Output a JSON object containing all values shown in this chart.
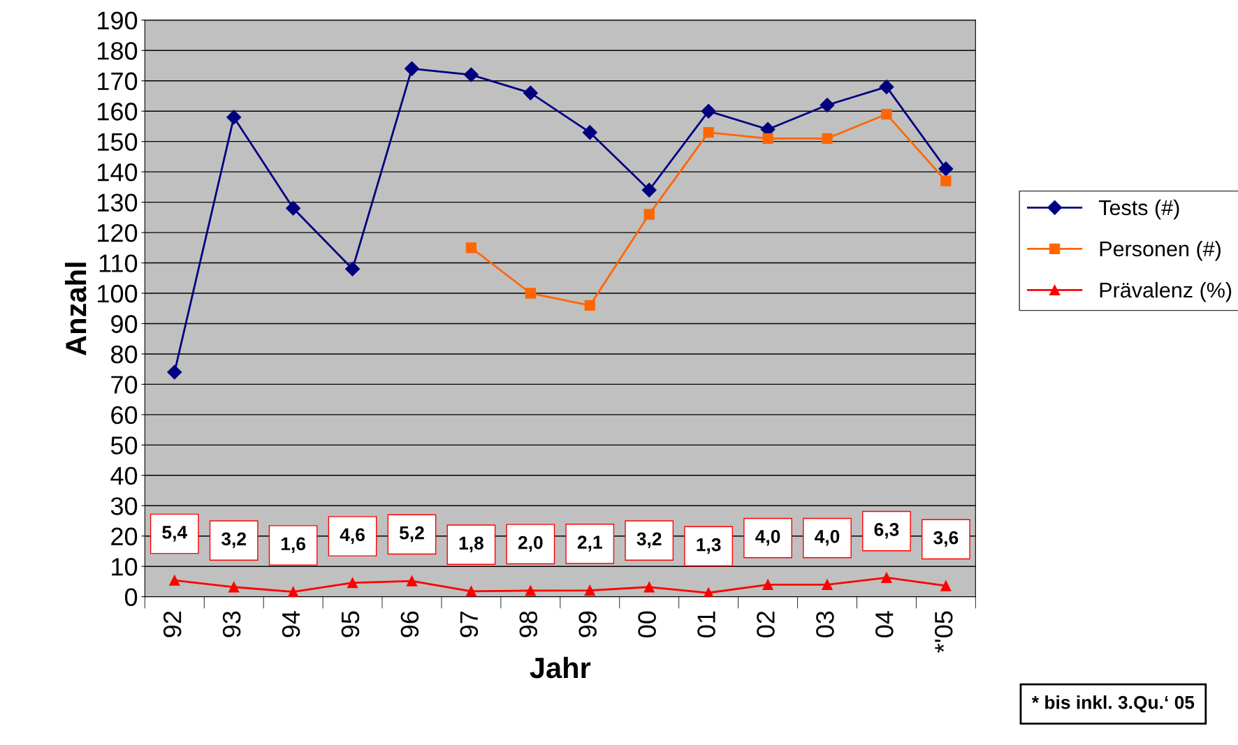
{
  "chart_data": {
    "type": "line",
    "xlabel": "Jahr",
    "ylabel": "Anzahl",
    "categories": [
      "92",
      "93",
      "94",
      "95",
      "96",
      "97",
      "98",
      "99",
      "00",
      "01",
      "02",
      "03",
      "04",
      "*'05"
    ],
    "series": [
      {
        "name": "Tests (#)",
        "color": "#000080",
        "marker": "diamond",
        "values": [
          74,
          158,
          128,
          108,
          174,
          172,
          166,
          153,
          134,
          160,
          154,
          162,
          168,
          141
        ]
      },
      {
        "name": "Personen (#)",
        "color": "#ff6600",
        "marker": "square",
        "values": [
          null,
          null,
          null,
          null,
          null,
          115,
          100,
          96,
          126,
          153,
          151,
          151,
          159,
          137
        ]
      },
      {
        "name": "Prävalenz (%)",
        "color": "#ff0000",
        "marker": "triangle",
        "values": [
          5.4,
          3.2,
          1.6,
          4.6,
          5.2,
          1.8,
          2.0,
          2.1,
          3.2,
          1.3,
          4.0,
          4.0,
          6.3,
          3.6
        ],
        "value_labels": [
          "5,4",
          "3,2",
          "1,6",
          "4,6",
          "5,2",
          "1,8",
          "2,0",
          "2,1",
          "3,2",
          "1,3",
          "4,0",
          "4,0",
          "6,3",
          "3,6"
        ]
      }
    ],
    "ylim": [
      0,
      190
    ],
    "yticks": [
      0,
      10,
      20,
      30,
      40,
      50,
      60,
      70,
      80,
      90,
      100,
      110,
      120,
      130,
      140,
      150,
      160,
      170,
      180,
      190
    ],
    "grid": "y",
    "legend": "right",
    "annotations": [
      "* bis inkl. 3.Qu.‘ 05"
    ]
  }
}
